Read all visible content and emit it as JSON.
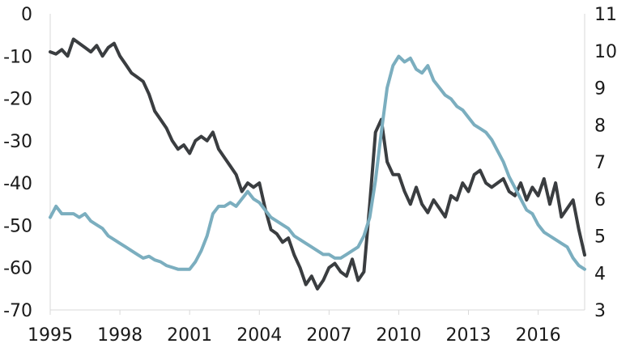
{
  "chart_data": {
    "type": "line",
    "title": "",
    "xlabel": "",
    "ylabel_left": "",
    "ylabel_right": "",
    "xlim": [
      1995,
      2018
    ],
    "ylim_left": [
      -70,
      0
    ],
    "ylim_right": [
      3,
      11
    ],
    "x_ticks": [
      1995,
      1998,
      2001,
      2004,
      2007,
      2010,
      2013,
      2016
    ],
    "x_tick_labels": [
      "1995",
      "1998",
      "2001",
      "2004",
      "2007",
      "2010",
      "2013",
      "2016"
    ],
    "y_left_ticks": [
      0,
      -10,
      -20,
      -30,
      -40,
      -50,
      -60,
      -70
    ],
    "y_left_tick_labels": [
      "0",
      "-10",
      "-20",
      "-30",
      "-40",
      "-50",
      "-60",
      "-70"
    ],
    "y_right_ticks": [
      11,
      10,
      9,
      8,
      7,
      6,
      5,
      4,
      3
    ],
    "y_right_tick_labels": [
      "11",
      "10",
      "9",
      "8",
      "7",
      "6",
      "5",
      "4",
      "3"
    ],
    "grid": false,
    "legend": "none",
    "series": [
      {
        "axis": "left",
        "color": "#3a3d40",
        "x": [
          1995.0,
          1995.25,
          1995.5,
          1995.75,
          1996.0,
          1996.25,
          1996.5,
          1996.75,
          1997.0,
          1997.25,
          1997.5,
          1997.75,
          1998.0,
          1998.25,
          1998.5,
          1998.75,
          1999.0,
          1999.25,
          1999.5,
          1999.75,
          2000.0,
          2000.25,
          2000.5,
          2000.75,
          2001.0,
          2001.25,
          2001.5,
          2001.75,
          2002.0,
          2002.25,
          2002.5,
          2002.75,
          2003.0,
          2003.25,
          2003.5,
          2003.75,
          2004.0,
          2004.25,
          2004.5,
          2004.75,
          2005.0,
          2005.25,
          2005.5,
          2005.75,
          2006.0,
          2006.25,
          2006.5,
          2006.75,
          2007.0,
          2007.25,
          2007.5,
          2007.75,
          2008.0,
          2008.25,
          2008.5,
          2008.75,
          2009.0,
          2009.25,
          2009.5,
          2009.75,
          2010.0,
          2010.25,
          2010.5,
          2010.75,
          2011.0,
          2011.25,
          2011.5,
          2011.75,
          2012.0,
          2012.25,
          2012.5,
          2012.75,
          2013.0,
          2013.25,
          2013.5,
          2013.75,
          2014.0,
          2014.25,
          2014.5,
          2014.75,
          2015.0,
          2015.25,
          2015.5,
          2015.75,
          2016.0,
          2016.25,
          2016.5,
          2016.75,
          2017.0,
          2017.25,
          2017.5,
          2017.75,
          2018.0
        ],
        "y": [
          -9,
          -9.5,
          -8.5,
          -10,
          -6,
          -7,
          -8,
          -9,
          -7.5,
          -10,
          -8,
          -7,
          -10,
          -12,
          -14,
          -15,
          -16,
          -19,
          -23,
          -25,
          -27,
          -30,
          -32,
          -31,
          -33,
          -30,
          -29,
          -30,
          -28,
          -32,
          -34,
          -36,
          -38,
          -42,
          -40,
          -41,
          -40,
          -46,
          -51,
          -52,
          -54,
          -53,
          -57,
          -60,
          -64,
          -62,
          -65,
          -63,
          -60,
          -59,
          -61,
          -62,
          -58,
          -63,
          -61,
          -45,
          -28,
          -25,
          -35,
          -38,
          -38,
          -42,
          -45,
          -41,
          -45,
          -47,
          -44,
          -46,
          -48,
          -43,
          -44,
          -40,
          -42,
          -38,
          -37,
          -40,
          -41,
          -40,
          -39,
          -42,
          -43,
          -40,
          -44,
          -41,
          -43,
          -39,
          -45,
          -40,
          -48,
          -46,
          -44,
          -51,
          -57
        ]
      },
      {
        "axis": "right",
        "color": "#7baebf",
        "x": [
          1995.0,
          1995.25,
          1995.5,
          1995.75,
          1996.0,
          1996.25,
          1996.5,
          1996.75,
          1997.0,
          1997.25,
          1997.5,
          1997.75,
          1998.0,
          1998.25,
          1998.5,
          1998.75,
          1999.0,
          1999.25,
          1999.5,
          1999.75,
          2000.0,
          2000.25,
          2000.5,
          2000.75,
          2001.0,
          2001.25,
          2001.5,
          2001.75,
          2002.0,
          2002.25,
          2002.5,
          2002.75,
          2003.0,
          2003.25,
          2003.5,
          2003.75,
          2004.0,
          2004.25,
          2004.5,
          2004.75,
          2005.0,
          2005.25,
          2005.5,
          2005.75,
          2006.0,
          2006.25,
          2006.5,
          2006.75,
          2007.0,
          2007.25,
          2007.5,
          2007.75,
          2008.0,
          2008.25,
          2008.5,
          2008.75,
          2009.0,
          2009.25,
          2009.5,
          2009.75,
          2010.0,
          2010.25,
          2010.5,
          2010.75,
          2011.0,
          2011.25,
          2011.5,
          2011.75,
          2012.0,
          2012.25,
          2012.5,
          2012.75,
          2013.0,
          2013.25,
          2013.5,
          2013.75,
          2014.0,
          2014.25,
          2014.5,
          2014.75,
          2015.0,
          2015.25,
          2015.5,
          2015.75,
          2016.0,
          2016.25,
          2016.5,
          2016.75,
          2017.0,
          2017.25,
          2017.5,
          2017.75,
          2018.0
        ],
        "y": [
          5.5,
          5.8,
          5.6,
          5.6,
          5.6,
          5.5,
          5.6,
          5.4,
          5.3,
          5.2,
          5.0,
          4.9,
          4.8,
          4.7,
          4.6,
          4.5,
          4.4,
          4.45,
          4.35,
          4.3,
          4.2,
          4.15,
          4.1,
          4.1,
          4.1,
          4.3,
          4.6,
          5.0,
          5.6,
          5.8,
          5.8,
          5.9,
          5.8,
          6.0,
          6.2,
          6.0,
          5.9,
          5.7,
          5.5,
          5.4,
          5.3,
          5.2,
          5.0,
          4.9,
          4.8,
          4.7,
          4.6,
          4.5,
          4.5,
          4.4,
          4.4,
          4.5,
          4.6,
          4.7,
          5.0,
          5.5,
          6.5,
          7.8,
          9.0,
          9.6,
          9.85,
          9.7,
          9.8,
          9.5,
          9.4,
          9.6,
          9.2,
          9.0,
          8.8,
          8.7,
          8.5,
          8.4,
          8.2,
          8.0,
          7.9,
          7.8,
          7.6,
          7.3,
          7.0,
          6.6,
          6.3,
          6.0,
          5.7,
          5.6,
          5.3,
          5.1,
          5.0,
          4.9,
          4.8,
          4.7,
          4.4,
          4.2,
          4.1
        ]
      }
    ]
  }
}
